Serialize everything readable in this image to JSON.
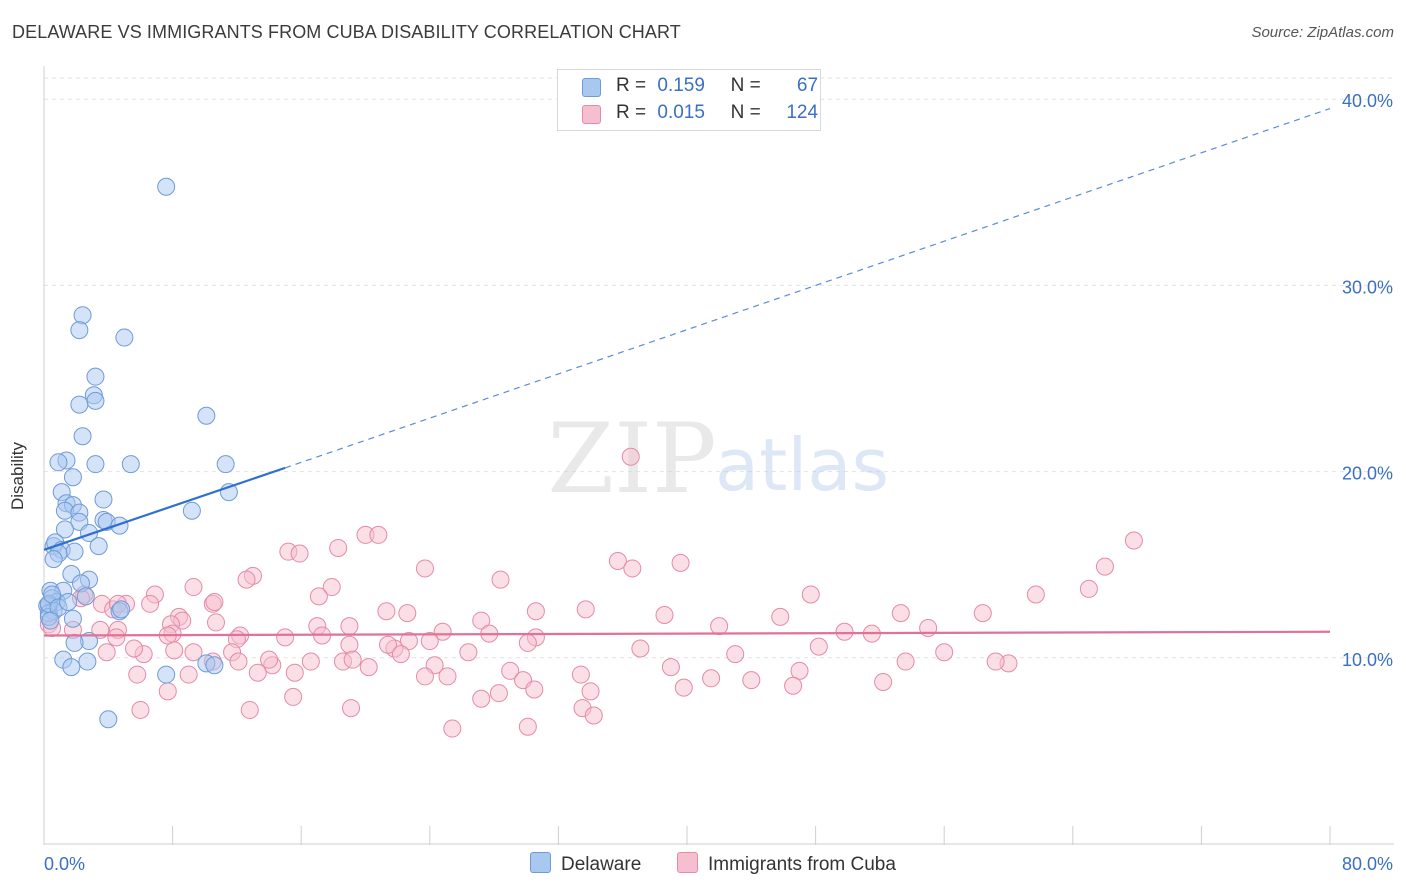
{
  "title": "DELAWARE VS IMMIGRANTS FROM CUBA DISABILITY CORRELATION CHART",
  "source": "Source: ZipAtlas.com",
  "watermark": {
    "zip": "ZIP",
    "atlas": "atlas"
  },
  "legend": {
    "r_label": "R =",
    "n_label": "N =",
    "series": [
      {
        "name": "Delaware",
        "r": "0.159",
        "n": "67",
        "color": "#a9c8f0",
        "stroke": "#6e9bd8"
      },
      {
        "name": "Immigrants from Cuba",
        "r": "0.015",
        "n": "124",
        "color": "#f6bfd0",
        "stroke": "#e58aa8"
      }
    ]
  },
  "chart_data": {
    "type": "scatter",
    "title": "DELAWARE VS IMMIGRANTS FROM CUBA DISABILITY CORRELATION CHART",
    "xlabel": "",
    "ylabel": "Disability",
    "xlim": [
      0,
      80
    ],
    "ylim": [
      0,
      42
    ],
    "x_tick_labels": [
      "0.0%",
      "80.0%"
    ],
    "y_ticks": [
      10,
      20,
      30,
      40
    ],
    "y_tick_labels": [
      "10.0%",
      "20.0%",
      "30.0%",
      "40.0%"
    ],
    "grid": true,
    "legend_position": "top-center",
    "series": [
      {
        "name": "Delaware",
        "color": "#a9c8f0",
        "stroke": "#6e9bd8",
        "trend": {
          "x0": 0,
          "y0": 15.8,
          "x1": 15,
          "y1": 20.2,
          "extend_to_x": 80,
          "extend_to_y": 39.5,
          "color": "#2f6fd0"
        },
        "points": [
          [
            7.6,
            35.3
          ],
          [
            2.4,
            28.4
          ],
          [
            2.2,
            27.6
          ],
          [
            5.0,
            27.2
          ],
          [
            3.2,
            25.1
          ],
          [
            3.1,
            24.1
          ],
          [
            3.2,
            23.8
          ],
          [
            2.2,
            23.6
          ],
          [
            10.1,
            23.0
          ],
          [
            2.4,
            21.9
          ],
          [
            1.4,
            20.6
          ],
          [
            0.9,
            20.5
          ],
          [
            3.2,
            20.4
          ],
          [
            5.4,
            20.4
          ],
          [
            11.3,
            20.4
          ],
          [
            1.8,
            19.7
          ],
          [
            1.1,
            18.9
          ],
          [
            11.5,
            18.9
          ],
          [
            3.7,
            18.5
          ],
          [
            1.4,
            18.3
          ],
          [
            1.8,
            18.2
          ],
          [
            1.3,
            17.9
          ],
          [
            2.2,
            17.8
          ],
          [
            9.2,
            17.9
          ],
          [
            3.7,
            17.4
          ],
          [
            2.2,
            17.3
          ],
          [
            3.9,
            17.3
          ],
          [
            4.7,
            17.1
          ],
          [
            1.3,
            16.9
          ],
          [
            2.8,
            16.7
          ],
          [
            0.6,
            16.0
          ],
          [
            0.7,
            16.2
          ],
          [
            3.4,
            16.0
          ],
          [
            1.1,
            15.8
          ],
          [
            1.9,
            15.7
          ],
          [
            0.9,
            15.6
          ],
          [
            0.6,
            15.3
          ],
          [
            1.7,
            14.5
          ],
          [
            2.8,
            14.2
          ],
          [
            2.3,
            14.0
          ],
          [
            0.4,
            13.6
          ],
          [
            1.2,
            13.6
          ],
          [
            0.5,
            13.2
          ],
          [
            0.8,
            13.0
          ],
          [
            0.3,
            12.8
          ],
          [
            0.2,
            12.8
          ],
          [
            0.6,
            12.5
          ],
          [
            0.3,
            12.4
          ],
          [
            4.7,
            12.5
          ],
          [
            4.8,
            12.6
          ],
          [
            0.3,
            12.2
          ],
          [
            1.8,
            12.1
          ],
          [
            2.8,
            10.9
          ],
          [
            1.9,
            10.8
          ],
          [
            1.2,
            9.9
          ],
          [
            2.7,
            9.8
          ],
          [
            10.1,
            9.7
          ],
          [
            10.6,
            9.6
          ],
          [
            1.7,
            9.5
          ],
          [
            7.6,
            9.1
          ],
          [
            4.0,
            6.7
          ],
          [
            0.3,
            12.9
          ],
          [
            0.5,
            13.4
          ],
          [
            0.9,
            12.7
          ],
          [
            2.6,
            13.3
          ],
          [
            1.5,
            13.0
          ],
          [
            0.4,
            12.0
          ]
        ]
      },
      {
        "name": "Immigrants from Cuba",
        "color": "#f6bfd0",
        "stroke": "#e58aa8",
        "trend": {
          "x0": 0,
          "y0": 11.2,
          "x1": 80,
          "y1": 11.4,
          "color": "#e0729a"
        },
        "points": [
          [
            36.5,
            20.8
          ],
          [
            20.0,
            16.6
          ],
          [
            20.8,
            16.6
          ],
          [
            67.8,
            16.3
          ],
          [
            18.3,
            15.9
          ],
          [
            15.2,
            15.7
          ],
          [
            15.9,
            15.6
          ],
          [
            35.7,
            15.2
          ],
          [
            39.6,
            15.1
          ],
          [
            36.6,
            14.8
          ],
          [
            66.0,
            14.9
          ],
          [
            23.7,
            14.8
          ],
          [
            13.0,
            14.4
          ],
          [
            12.6,
            14.2
          ],
          [
            28.4,
            14.2
          ],
          [
            6.9,
            13.4
          ],
          [
            9.3,
            13.8
          ],
          [
            17.9,
            13.8
          ],
          [
            47.7,
            13.4
          ],
          [
            61.7,
            13.4
          ],
          [
            65.0,
            13.7
          ],
          [
            17.1,
            13.3
          ],
          [
            2.5,
            13.4
          ],
          [
            2.3,
            13.2
          ],
          [
            5.1,
            12.9
          ],
          [
            6.6,
            12.9
          ],
          [
            10.5,
            12.9
          ],
          [
            10.6,
            13.0
          ],
          [
            3.6,
            12.9
          ],
          [
            4.3,
            12.6
          ],
          [
            4.6,
            12.9
          ],
          [
            21.3,
            12.5
          ],
          [
            22.6,
            12.4
          ],
          [
            30.6,
            12.5
          ],
          [
            33.7,
            12.6
          ],
          [
            38.6,
            12.3
          ],
          [
            45.8,
            12.2
          ],
          [
            53.3,
            12.4
          ],
          [
            58.4,
            12.4
          ],
          [
            8.4,
            12.2
          ],
          [
            8.6,
            12.0
          ],
          [
            27.2,
            12.0
          ],
          [
            10.7,
            11.9
          ],
          [
            7.9,
            11.8
          ],
          [
            19.0,
            11.7
          ],
          [
            17.0,
            11.7
          ],
          [
            24.8,
            11.4
          ],
          [
            42.0,
            11.7
          ],
          [
            55.0,
            11.6
          ],
          [
            49.8,
            11.4
          ],
          [
            51.5,
            11.3
          ],
          [
            3.5,
            11.5
          ],
          [
            1.8,
            11.5
          ],
          [
            0.3,
            11.8
          ],
          [
            0.5,
            11.6
          ],
          [
            4.6,
            11.5
          ],
          [
            8.0,
            11.3
          ],
          [
            12.2,
            11.2
          ],
          [
            12.0,
            11.0
          ],
          [
            17.3,
            11.2
          ],
          [
            27.7,
            11.3
          ],
          [
            30.6,
            11.1
          ],
          [
            4.5,
            11.1
          ],
          [
            7.7,
            11.2
          ],
          [
            15.0,
            11.1
          ],
          [
            22.7,
            10.9
          ],
          [
            30.1,
            10.8
          ],
          [
            37.1,
            10.5
          ],
          [
            48.2,
            10.6
          ],
          [
            19.0,
            10.7
          ],
          [
            6.2,
            10.2
          ],
          [
            24.0,
            10.9
          ],
          [
            21.8,
            10.5
          ],
          [
            8.1,
            10.4
          ],
          [
            11.7,
            10.3
          ],
          [
            43.0,
            10.2
          ],
          [
            56.0,
            10.3
          ],
          [
            3.9,
            10.3
          ],
          [
            9.3,
            10.3
          ],
          [
            21.4,
            10.7
          ],
          [
            26.4,
            10.3
          ],
          [
            5.6,
            10.5
          ],
          [
            16.6,
            9.8
          ],
          [
            12.1,
            9.8
          ],
          [
            14.2,
            9.6
          ],
          [
            14.0,
            9.9
          ],
          [
            18.6,
            9.8
          ],
          [
            10.5,
            9.8
          ],
          [
            20.2,
            9.5
          ],
          [
            24.3,
            9.6
          ],
          [
            39.0,
            9.5
          ],
          [
            47.0,
            9.3
          ],
          [
            53.6,
            9.8
          ],
          [
            60.0,
            9.7
          ],
          [
            59.2,
            9.8
          ],
          [
            29.0,
            9.3
          ],
          [
            33.4,
            9.1
          ],
          [
            23.7,
            9.0
          ],
          [
            25.1,
            9.0
          ],
          [
            29.8,
            8.8
          ],
          [
            41.5,
            8.9
          ],
          [
            44.0,
            8.8
          ],
          [
            13.3,
            9.2
          ],
          [
            15.6,
            9.2
          ],
          [
            5.8,
            9.1
          ],
          [
            9.0,
            9.1
          ],
          [
            30.5,
            8.3
          ],
          [
            34.0,
            8.2
          ],
          [
            7.7,
            8.2
          ],
          [
            39.8,
            8.4
          ],
          [
            46.6,
            8.5
          ],
          [
            52.2,
            8.7
          ],
          [
            15.5,
            7.9
          ],
          [
            27.2,
            7.8
          ],
          [
            33.5,
            7.3
          ],
          [
            19.1,
            7.3
          ],
          [
            12.8,
            7.2
          ],
          [
            6.0,
            7.2
          ],
          [
            30.1,
            6.3
          ],
          [
            34.2,
            6.9
          ],
          [
            25.4,
            6.2
          ],
          [
            19.2,
            9.9
          ],
          [
            28.3,
            8.1
          ],
          [
            22.2,
            10.2
          ]
        ]
      }
    ]
  }
}
